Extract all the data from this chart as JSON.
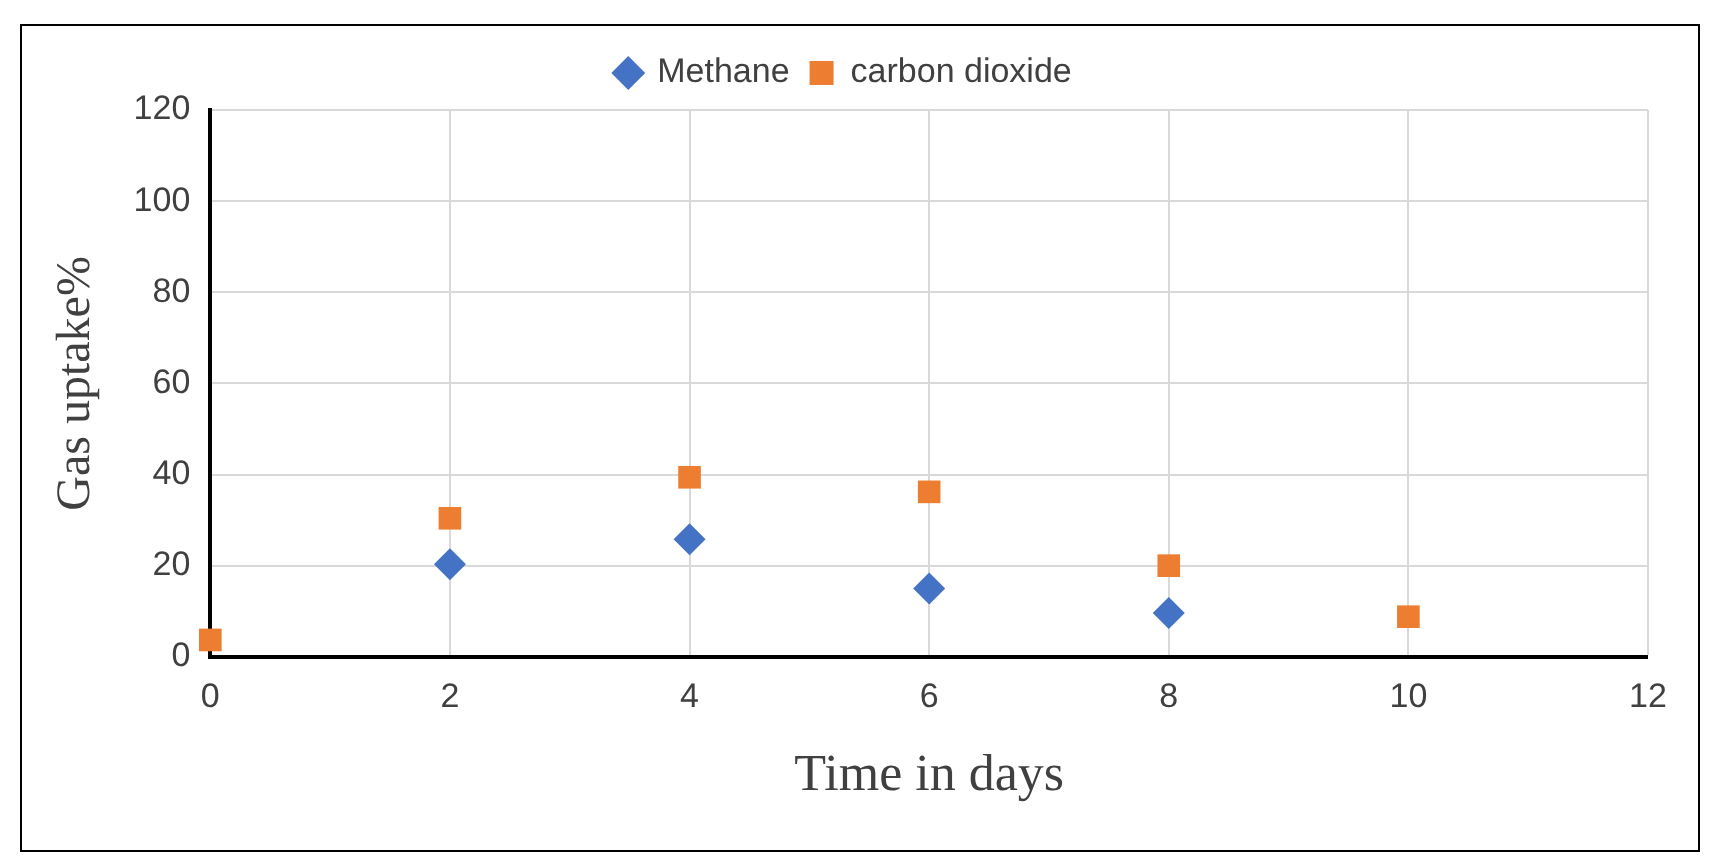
{
  "chart_data": {
    "type": "scatter",
    "xlabel": "Time in days",
    "ylabel": "Gas uptake%",
    "x": [
      0,
      2,
      4,
      6,
      8,
      10
    ],
    "series": [
      {
        "name": "Methane",
        "color": "#4472c4",
        "marker": "diamond",
        "values": [
          null,
          20.3,
          25.8,
          15,
          9.6,
          null
        ]
      },
      {
        "name": "carbon dioxide",
        "color": "#ed7d31",
        "marker": "square",
        "values": [
          3.7,
          30.4,
          39.4,
          36.2,
          20,
          8.8
        ]
      }
    ],
    "xlim": [
      0,
      12
    ],
    "xticks": [
      0,
      2,
      4,
      6,
      8,
      10,
      12
    ],
    "ylim": [
      0,
      120
    ],
    "yticks": [
      0,
      20,
      40,
      60,
      80,
      100,
      120
    ],
    "grid": true,
    "legend": "top"
  }
}
